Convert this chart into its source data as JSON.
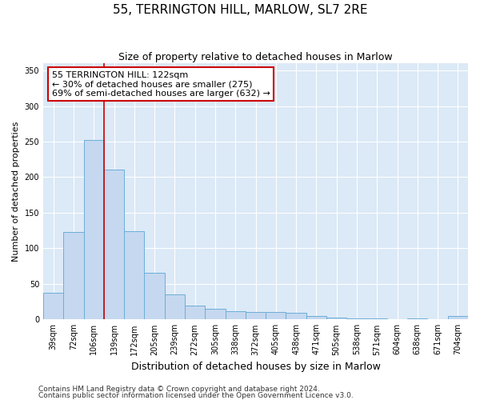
{
  "title": "55, TERRINGTON HILL, MARLOW, SL7 2RE",
  "subtitle": "Size of property relative to detached houses in Marlow",
  "xlabel": "Distribution of detached houses by size in Marlow",
  "ylabel": "Number of detached properties",
  "categories": [
    "39sqm",
    "72sqm",
    "106sqm",
    "139sqm",
    "172sqm",
    "205sqm",
    "239sqm",
    "272sqm",
    "305sqm",
    "338sqm",
    "372sqm",
    "405sqm",
    "438sqm",
    "471sqm",
    "505sqm",
    "538sqm",
    "571sqm",
    "604sqm",
    "638sqm",
    "671sqm",
    "704sqm"
  ],
  "bar_heights": [
    37,
    123,
    252,
    211,
    124,
    66,
    35,
    20,
    15,
    12,
    10,
    10,
    9,
    5,
    3,
    1,
    1,
    0,
    2,
    0,
    5
  ],
  "bar_color": "#c5d8f0",
  "bar_edge_color": "#6baed6",
  "annotation_line1": "55 TERRINGTON HILL: 122sqm",
  "annotation_line2": "← 30% of detached houses are smaller (275)",
  "annotation_line3": "69% of semi-detached houses are larger (632) →",
  "annotation_box_facecolor": "#ffffff",
  "annotation_box_edgecolor": "#cc0000",
  "vline_color": "#cc0000",
  "vline_x": 2.5,
  "ylim": [
    0,
    360
  ],
  "yticks": [
    0,
    50,
    100,
    150,
    200,
    250,
    300,
    350
  ],
  "figure_facecolor": "#ffffff",
  "axes_facecolor": "#dce9f7",
  "grid_color": "#ffffff",
  "title_fontsize": 11,
  "subtitle_fontsize": 9,
  "xlabel_fontsize": 9,
  "ylabel_fontsize": 8,
  "tick_fontsize": 7,
  "annotation_fontsize": 8,
  "footer_fontsize": 6.5,
  "footer1": "Contains HM Land Registry data © Crown copyright and database right 2024.",
  "footer2": "Contains public sector information licensed under the Open Government Licence v3.0."
}
